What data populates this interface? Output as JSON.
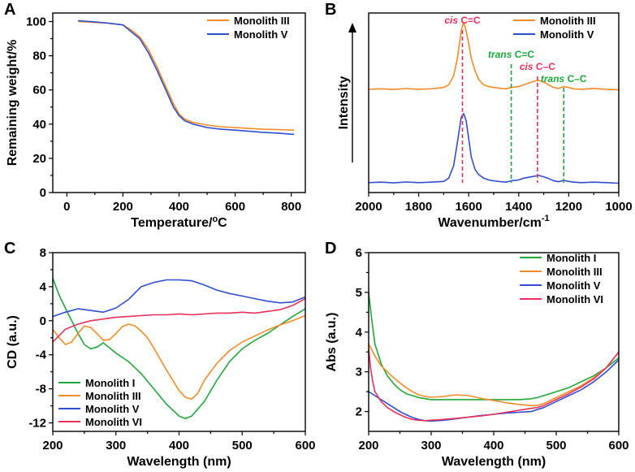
{
  "colors": {
    "orange": "#F28C28",
    "blue": "#2F4FD0",
    "green": "#22A63A",
    "red": "#E8305A",
    "green_dash": "#19A838",
    "pink_dash": "#E8305A"
  },
  "chart_data": [
    {
      "panel": "A",
      "type": "line",
      "title": "",
      "xlabel": "Temperature/°C",
      "ylabel": "Remaining weight/%",
      "xlim": [
        -50,
        850
      ],
      "ylim": [
        0,
        105
      ],
      "xticks": [
        0,
        200,
        400,
        600,
        800
      ],
      "yticks": [
        0,
        20,
        40,
        60,
        80,
        100
      ],
      "legend_position": "top-right",
      "series": [
        {
          "name": "Monolith III",
          "color_key": "orange",
          "x": [
            40,
            100,
            150,
            200,
            230,
            260,
            290,
            320,
            350,
            380,
            400,
            420,
            450,
            500,
            550,
            600,
            650,
            700,
            750,
            810
          ],
          "y": [
            100,
            99.5,
            99,
            98,
            95,
            91,
            84,
            74,
            63,
            52,
            46,
            43,
            41,
            39.5,
            38.5,
            38,
            37.5,
            37,
            36.8,
            36.5
          ]
        },
        {
          "name": "Monolith V",
          "color_key": "blue",
          "x": [
            40,
            100,
            150,
            200,
            230,
            260,
            290,
            320,
            350,
            380,
            400,
            420,
            450,
            500,
            550,
            600,
            650,
            700,
            750,
            810
          ],
          "y": [
            100.5,
            99.8,
            99,
            98,
            94,
            90,
            82,
            72,
            61,
            50,
            45,
            42,
            40,
            38,
            37,
            36.5,
            35.8,
            35.2,
            34.8,
            34
          ]
        }
      ]
    },
    {
      "panel": "B",
      "type": "line",
      "title": "",
      "xlabel": "Wavenumber/cm",
      "xlabel_sup": "-1",
      "ylabel": "Intensity",
      "xlim": [
        2000,
        1000
      ],
      "ylim": [
        0,
        1
      ],
      "xticks": [
        2000,
        1800,
        1600,
        1400,
        1200,
        1000
      ],
      "yticks": [],
      "legend_position": "top-right",
      "series": [
        {
          "name": "Monolith III",
          "color_key": "orange",
          "x": [
            2000,
            1950,
            1900,
            1850,
            1800,
            1750,
            1700,
            1680,
            1660,
            1645,
            1630,
            1620,
            1610,
            1600,
            1590,
            1575,
            1560,
            1540,
            1520,
            1500,
            1470,
            1450,
            1430,
            1400,
            1380,
            1360,
            1340,
            1320,
            1300,
            1280,
            1260,
            1240,
            1220,
            1200,
            1180,
            1150,
            1100,
            1050,
            1000
          ],
          "y": [
            0.575,
            0.578,
            0.574,
            0.579,
            0.575,
            0.578,
            0.585,
            0.6,
            0.65,
            0.75,
            0.9,
            0.95,
            0.9,
            0.83,
            0.75,
            0.68,
            0.63,
            0.6,
            0.59,
            0.585,
            0.58,
            0.578,
            0.585,
            0.59,
            0.6,
            0.61,
            0.62,
            0.625,
            0.615,
            0.6,
            0.585,
            0.58,
            0.59,
            0.585,
            0.578,
            0.575,
            0.58,
            0.575,
            0.572
          ]
        },
        {
          "name": "Monolith V",
          "color_key": "blue",
          "x": [
            2000,
            1950,
            1900,
            1850,
            1800,
            1750,
            1700,
            1680,
            1660,
            1645,
            1630,
            1620,
            1610,
            1600,
            1590,
            1575,
            1560,
            1540,
            1520,
            1500,
            1470,
            1450,
            1430,
            1400,
            1380,
            1360,
            1340,
            1320,
            1300,
            1280,
            1260,
            1240,
            1220,
            1200,
            1180,
            1150,
            1100,
            1050,
            1000
          ],
          "y": [
            0.055,
            0.058,
            0.054,
            0.059,
            0.055,
            0.058,
            0.062,
            0.08,
            0.15,
            0.28,
            0.42,
            0.44,
            0.4,
            0.3,
            0.2,
            0.13,
            0.1,
            0.08,
            0.07,
            0.065,
            0.06,
            0.058,
            0.065,
            0.07,
            0.08,
            0.085,
            0.09,
            0.095,
            0.088,
            0.078,
            0.065,
            0.06,
            0.068,
            0.062,
            0.058,
            0.055,
            0.058,
            0.055,
            0.052
          ]
        }
      ],
      "annotations": [
        {
          "label_italic": "cis",
          "label_rest": " C=C",
          "x": 1625,
          "color_key": "pink_dash"
        },
        {
          "label_italic": "trans",
          "label_rest": " C=C",
          "x": 1430,
          "color_key": "green_dash"
        },
        {
          "label_italic": "cis",
          "label_rest": " C–C",
          "x": 1325,
          "color_key": "pink_dash"
        },
        {
          "label_italic": "trans",
          "label_rest": " C–C",
          "x": 1220,
          "color_key": "green_dash"
        }
      ]
    },
    {
      "panel": "C",
      "type": "line",
      "title": "",
      "xlabel": "Wavelength (nm)",
      "ylabel": "CD (a.u.)",
      "xlim": [
        200,
        600
      ],
      "ylim": [
        -13,
        8
      ],
      "xticks": [
        200,
        300,
        400,
        500,
        600
      ],
      "yticks": [
        -12,
        -8,
        -4,
        0,
        4,
        8
      ],
      "legend_position": "bottom-left",
      "series": [
        {
          "name": "Monolith I",
          "color_key": "green",
          "x": [
            200,
            210,
            220,
            230,
            240,
            250,
            260,
            270,
            280,
            290,
            300,
            320,
            340,
            360,
            380,
            400,
            410,
            420,
            440,
            460,
            480,
            500,
            520,
            540,
            560,
            580,
            600
          ],
          "y": [
            5,
            3,
            1.5,
            0,
            -1.5,
            -2.8,
            -3.3,
            -3.1,
            -2.6,
            -3.2,
            -3.8,
            -4.8,
            -6.2,
            -8,
            -9.8,
            -11.2,
            -11.5,
            -11.2,
            -9.5,
            -7,
            -4.8,
            -3.3,
            -2.3,
            -1.5,
            -0.5,
            0.5,
            1.4
          ]
        },
        {
          "name": "Monolith III",
          "color_key": "orange",
          "x": [
            200,
            210,
            220,
            230,
            240,
            250,
            260,
            270,
            280,
            290,
            300,
            310,
            320,
            330,
            340,
            350,
            360,
            380,
            400,
            410,
            420,
            430,
            440,
            460,
            480,
            500,
            520,
            540,
            560,
            580,
            600
          ],
          "y": [
            -1,
            -2,
            -2.8,
            -2.5,
            -1.5,
            -0.6,
            -0.8,
            -1.5,
            -2.3,
            -2.2,
            -1.5,
            -0.7,
            -0.4,
            -0.6,
            -1.2,
            -2,
            -3.2,
            -5.8,
            -8.2,
            -9,
            -9.2,
            -8.5,
            -7,
            -5,
            -3.5,
            -2.5,
            -1.8,
            -1.1,
            -0.5,
            0,
            0.6
          ]
        },
        {
          "name": "Monolith V",
          "color_key": "blue",
          "x": [
            200,
            220,
            240,
            260,
            280,
            300,
            320,
            340,
            360,
            380,
            400,
            420,
            440,
            460,
            480,
            500,
            520,
            540,
            560,
            580,
            600
          ],
          "y": [
            0.5,
            1.0,
            1.4,
            1.2,
            1.0,
            1.5,
            2.5,
            4.0,
            4.5,
            4.8,
            4.8,
            4.7,
            4.2,
            3.6,
            3.2,
            2.9,
            2.6,
            2.3,
            2.1,
            2.2,
            2.8
          ]
        },
        {
          "name": "Monolith VI",
          "color_key": "red",
          "x": [
            200,
            220,
            240,
            260,
            280,
            300,
            320,
            340,
            360,
            380,
            400,
            420,
            440,
            460,
            480,
            500,
            520,
            540,
            560,
            580,
            600
          ],
          "y": [
            -2.5,
            -1.0,
            -0.4,
            0.0,
            0.2,
            0.4,
            0.5,
            0.6,
            0.7,
            0.7,
            0.8,
            0.7,
            0.8,
            0.9,
            0.9,
            1.0,
            0.9,
            1.1,
            1.3,
            1.8,
            2.6
          ]
        }
      ]
    },
    {
      "panel": "D",
      "type": "line",
      "title": "",
      "xlabel": "Wavelength (nm)",
      "ylabel": "Abs (a.u.)",
      "xlim": [
        200,
        600
      ],
      "ylim": [
        1.5,
        6
      ],
      "xticks": [
        200,
        300,
        400,
        500,
        600
      ],
      "yticks": [
        2,
        3,
        4,
        5,
        6
      ],
      "legend_position": "top-right",
      "series": [
        {
          "name": "Monolith I",
          "color_key": "green",
          "x": [
            200,
            205,
            210,
            220,
            230,
            240,
            250,
            260,
            270,
            280,
            300,
            320,
            340,
            360,
            380,
            400,
            420,
            440,
            460,
            470,
            480,
            490,
            500,
            520,
            540,
            560,
            580,
            600
          ],
          "y": [
            5.0,
            4.3,
            3.7,
            3.2,
            2.9,
            2.7,
            2.55,
            2.45,
            2.4,
            2.35,
            2.3,
            2.3,
            2.3,
            2.3,
            2.3,
            2.3,
            2.3,
            2.3,
            2.32,
            2.35,
            2.4,
            2.45,
            2.5,
            2.6,
            2.75,
            2.9,
            3.1,
            3.35
          ]
        },
        {
          "name": "Monolith III",
          "color_key": "orange",
          "x": [
            200,
            210,
            220,
            230,
            240,
            250,
            260,
            270,
            280,
            290,
            300,
            320,
            340,
            360,
            380,
            400,
            420,
            440,
            460,
            470,
            480,
            500,
            520,
            540,
            560,
            580,
            600
          ],
          "y": [
            3.7,
            3.4,
            3.15,
            3.0,
            2.85,
            2.72,
            2.6,
            2.5,
            2.42,
            2.38,
            2.36,
            2.38,
            2.42,
            2.4,
            2.33,
            2.28,
            2.22,
            2.18,
            2.15,
            2.15,
            2.2,
            2.35,
            2.5,
            2.65,
            2.85,
            3.1,
            3.5
          ]
        },
        {
          "name": "Monolith V",
          "color_key": "blue",
          "x": [
            200,
            210,
            220,
            230,
            240,
            250,
            260,
            270,
            280,
            290,
            300,
            320,
            340,
            360,
            380,
            400,
            420,
            440,
            460,
            470,
            480,
            500,
            520,
            540,
            560,
            580,
            600
          ],
          "y": [
            2.5,
            2.4,
            2.3,
            2.2,
            2.1,
            2.0,
            1.92,
            1.85,
            1.8,
            1.77,
            1.76,
            1.78,
            1.82,
            1.86,
            1.9,
            1.93,
            1.96,
            1.98,
            2.0,
            2.05,
            2.1,
            2.25,
            2.4,
            2.55,
            2.75,
            3.0,
            3.3
          ]
        },
        {
          "name": "Monolith VI",
          "color_key": "red",
          "x": [
            200,
            203,
            206,
            210,
            220,
            230,
            240,
            250,
            260,
            270,
            280,
            290,
            300,
            320,
            340,
            360,
            380,
            400,
            420,
            440,
            460,
            470,
            480,
            500,
            520,
            540,
            560,
            580,
            600
          ],
          "y": [
            3.6,
            3.1,
            2.8,
            2.5,
            2.25,
            2.1,
            2.0,
            1.92,
            1.85,
            1.8,
            1.78,
            1.77,
            1.78,
            1.8,
            1.83,
            1.86,
            1.89,
            1.93,
            1.98,
            2.03,
            2.08,
            2.1,
            2.15,
            2.3,
            2.45,
            2.62,
            2.82,
            3.1,
            3.5
          ]
        }
      ]
    }
  ]
}
